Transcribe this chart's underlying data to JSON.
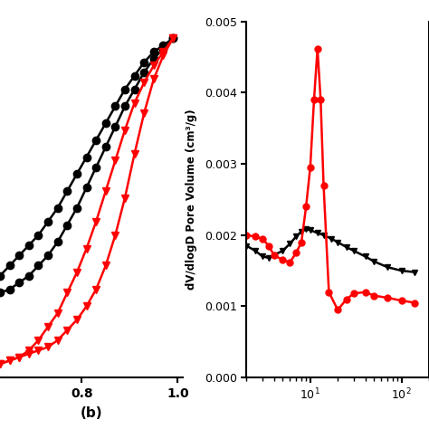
{
  "left_plot": {
    "black_adsorption_x": [
      0.63,
      0.65,
      0.67,
      0.69,
      0.71,
      0.73,
      0.75,
      0.77,
      0.79,
      0.81,
      0.83,
      0.85,
      0.87,
      0.89,
      0.91,
      0.93,
      0.95,
      0.97,
      0.99
    ],
    "black_adsorption_y": [
      0.3,
      0.33,
      0.36,
      0.39,
      0.42,
      0.46,
      0.5,
      0.55,
      0.6,
      0.65,
      0.7,
      0.75,
      0.8,
      0.85,
      0.89,
      0.93,
      0.96,
      0.98,
      1.0
    ],
    "black_desorption_x": [
      0.99,
      0.97,
      0.95,
      0.93,
      0.91,
      0.89,
      0.87,
      0.85,
      0.83,
      0.81,
      0.79,
      0.77,
      0.75,
      0.73,
      0.71,
      0.69,
      0.67,
      0.65,
      0.63
    ],
    "black_desorption_y": [
      1.0,
      0.97,
      0.94,
      0.9,
      0.85,
      0.8,
      0.74,
      0.68,
      0.62,
      0.56,
      0.5,
      0.45,
      0.4,
      0.36,
      0.33,
      0.3,
      0.28,
      0.26,
      0.25
    ],
    "red_adsorption_x": [
      0.63,
      0.65,
      0.67,
      0.69,
      0.71,
      0.73,
      0.75,
      0.77,
      0.79,
      0.81,
      0.83,
      0.85,
      0.87,
      0.89,
      0.91,
      0.93,
      0.95,
      0.97,
      0.99
    ],
    "red_adsorption_y": [
      0.04,
      0.05,
      0.06,
      0.07,
      0.08,
      0.09,
      0.11,
      0.14,
      0.17,
      0.21,
      0.26,
      0.33,
      0.42,
      0.53,
      0.66,
      0.78,
      0.88,
      0.95,
      1.0
    ],
    "red_desorption_x": [
      0.99,
      0.97,
      0.95,
      0.93,
      0.91,
      0.89,
      0.87,
      0.85,
      0.83,
      0.81,
      0.79,
      0.77,
      0.75,
      0.73,
      0.71,
      0.69,
      0.67,
      0.65,
      0.63
    ],
    "red_desorption_y": [
      1.0,
      0.96,
      0.92,
      0.87,
      0.81,
      0.73,
      0.64,
      0.55,
      0.46,
      0.38,
      0.31,
      0.25,
      0.19,
      0.15,
      0.11,
      0.08,
      0.06,
      0.05,
      0.04
    ],
    "xlim": [
      0.63,
      1.01
    ],
    "ylim": [
      0.0,
      1.05
    ],
    "xticks": [
      0.8,
      1.0
    ]
  },
  "right_plot": {
    "black_x": [
      2.0,
      2.5,
      3.0,
      3.5,
      4.0,
      5.0,
      6.0,
      7.0,
      8.0,
      9.0,
      10.0,
      12.0,
      14.0,
      17.0,
      20.0,
      25.0,
      30.0,
      40.0,
      50.0,
      70.0,
      100.0,
      140.0
    ],
    "black_y": [
      0.00185,
      0.00178,
      0.0017,
      0.00168,
      0.00172,
      0.00178,
      0.00188,
      0.00198,
      0.00205,
      0.00208,
      0.00207,
      0.00203,
      0.002,
      0.00195,
      0.0019,
      0.00183,
      0.00178,
      0.0017,
      0.00163,
      0.00155,
      0.0015,
      0.00148
    ],
    "red_x": [
      2.0,
      2.5,
      3.0,
      3.5,
      4.0,
      5.0,
      6.0,
      7.0,
      8.0,
      9.0,
      10.0,
      11.0,
      12.0,
      13.0,
      14.0,
      16.0,
      20.0,
      25.0,
      30.0,
      40.0,
      50.0,
      70.0,
      100.0,
      140.0
    ],
    "red_y": [
      0.002,
      0.00198,
      0.00195,
      0.00185,
      0.00172,
      0.00165,
      0.00162,
      0.00175,
      0.0019,
      0.0024,
      0.00295,
      0.0039,
      0.00462,
      0.0039,
      0.0027,
      0.0012,
      0.00095,
      0.0011,
      0.00118,
      0.0012,
      0.00115,
      0.00112,
      0.00108,
      0.00105
    ],
    "ylim": [
      0.0,
      0.005
    ],
    "yticks": [
      0.0,
      0.001,
      0.002,
      0.003,
      0.004,
      0.005
    ],
    "ylabel": "dV/dlogD Pore Volume (cm³/g)"
  },
  "bg_color": "#ffffff"
}
